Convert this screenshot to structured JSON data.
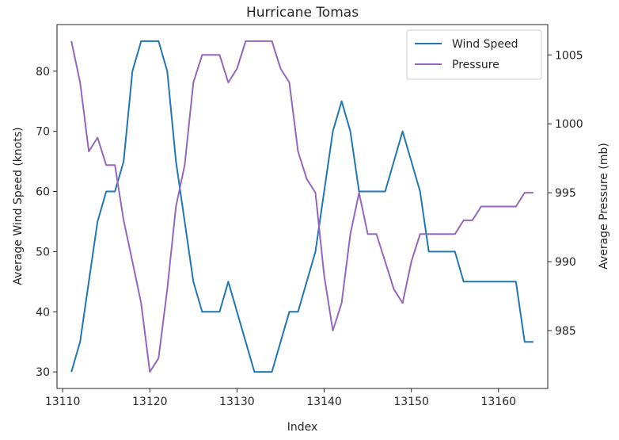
{
  "chart_data": {
    "type": "line",
    "title": "Hurricane Tomas",
    "xlabel": "Index",
    "ylabel_left": "Average Wind Speed (knots)",
    "ylabel_right": "Average Pressure (mb)",
    "x": [
      13111,
      13112,
      13113,
      13114,
      13115,
      13116,
      13117,
      13118,
      13119,
      13120,
      13121,
      13122,
      13123,
      13124,
      13125,
      13126,
      13127,
      13128,
      13129,
      13130,
      13131,
      13132,
      13133,
      13134,
      13135,
      13136,
      13137,
      13138,
      13139,
      13140,
      13141,
      13142,
      13143,
      13144,
      13145,
      13146,
      13147,
      13148,
      13149,
      13150,
      13151,
      13152,
      13153,
      13154,
      13155,
      13156,
      13157,
      13158,
      13159,
      13160,
      13161,
      13162,
      13163,
      13164
    ],
    "series": [
      {
        "name": "Wind Speed",
        "axis": "left",
        "color": "#1f77b4",
        "values": [
          30,
          35,
          45,
          55,
          60,
          60,
          65,
          80,
          85,
          85,
          85,
          80,
          65,
          55,
          45,
          40,
          40,
          40,
          45,
          40,
          35,
          30,
          30,
          30,
          35,
          40,
          40,
          45,
          50,
          60,
          70,
          75,
          70,
          60,
          60,
          60,
          60,
          65,
          70,
          65,
          60,
          50,
          50,
          50,
          50,
          45,
          45,
          45,
          45,
          45,
          45,
          45,
          35,
          35
        ]
      },
      {
        "name": "Pressure",
        "axis": "right",
        "color": "#9467bd",
        "values": [
          1006,
          1003,
          998,
          999,
          997,
          997,
          993,
          990,
          987,
          982,
          983,
          988,
          994,
          997,
          1003,
          1005,
          1005,
          1005,
          1003,
          1004,
          1006,
          1006,
          1006,
          1006,
          1004,
          1003,
          998,
          996,
          995,
          989,
          985,
          987,
          992,
          995,
          992,
          992,
          990,
          988,
          987,
          990,
          992,
          992,
          992,
          992,
          992,
          993,
          993,
          994,
          994,
          994,
          994,
          994,
          995,
          995
        ]
      }
    ],
    "xticks": [
      13110,
      13120,
      13130,
      13140,
      13150,
      13160
    ],
    "yticks_left": [
      30,
      40,
      50,
      60,
      70,
      80
    ],
    "yticks_right": [
      985,
      990,
      995,
      1000,
      1005
    ],
    "xlim": [
      13109.35,
      13165.65
    ],
    "ylim_left": [
      27.25,
      87.75
    ],
    "ylim_right": [
      980.8,
      1007.2
    ],
    "legend_position": "top-right",
    "grid": false
  }
}
